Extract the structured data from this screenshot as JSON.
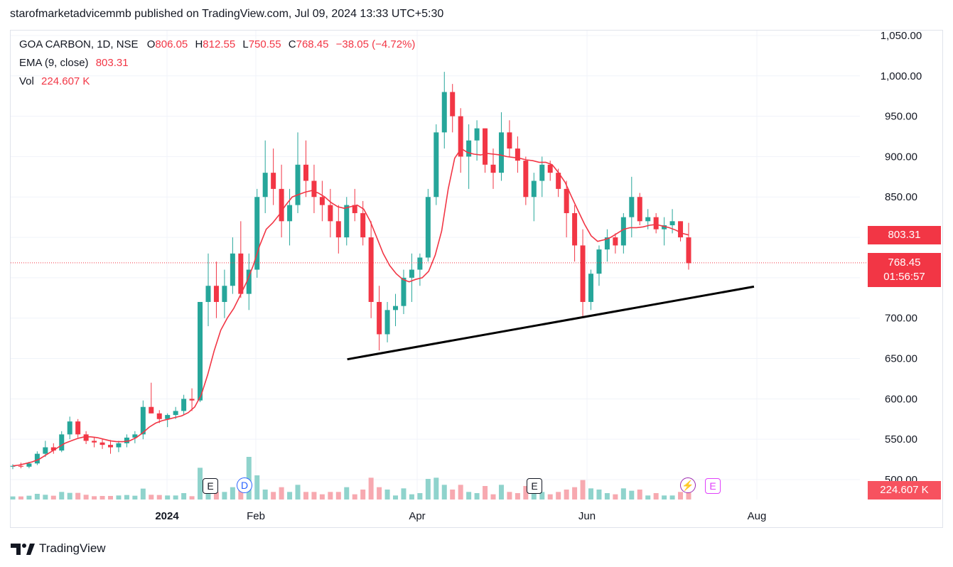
{
  "header": {
    "published": "starofmarketadvicemmb published on TradingView.com, Jul 09, 2024 13:33 UTC+5:30"
  },
  "legend": {
    "symbol": "GOA CARBON, 1D, NSE",
    "o_label": "O",
    "o": "806.05",
    "h_label": "H",
    "h": "812.55",
    "l_label": "L",
    "l": "750.55",
    "c_label": "C",
    "c": "768.45",
    "change": "−38.05 (−4.72%)",
    "ema_label": "EMA (9, close)",
    "ema_value": "803.31",
    "vol_label": "Vol",
    "vol_value": "224.607 K"
  },
  "price_tags": {
    "ema": "803.31",
    "last": "768.45",
    "countdown": "01:56:57",
    "volume": "224.607 K"
  },
  "badges": {
    "earnings": "E",
    "dividend": "D"
  },
  "brand": {
    "name": "TradingView"
  },
  "colors": {
    "up": "#26a69a",
    "down": "#f23645",
    "ema": "#f23645",
    "vol_up": "#8fd3cc",
    "vol_down": "#f7a9b0",
    "trendline": "#000000"
  },
  "chart_data": {
    "type": "candlestick",
    "symbol": "GOA CARBON",
    "interval": "1D",
    "exchange": "NSE",
    "y_ticks": [
      "1,050.00",
      "1,000.00",
      "950.00",
      "900.00",
      "850.00",
      "800.00",
      "750.00",
      "700.00",
      "650.00",
      "600.00",
      "550.00",
      "500.00"
    ],
    "y_tick_values": [
      1050,
      1000,
      950,
      900,
      850,
      800,
      750,
      700,
      650,
      600,
      550,
      500
    ],
    "ylim": [
      478,
      1057
    ],
    "x_ticks": [
      {
        "label": "2024",
        "date": "2024-01-01"
      },
      {
        "label": "Feb",
        "date": "2024-02-01"
      },
      {
        "label": "Apr",
        "date": "2024-04-01"
      },
      {
        "label": "Jun",
        "date": "2024-06-03"
      },
      {
        "label": "Aug",
        "date": "2024-08-01"
      }
    ],
    "last_close": 768.45,
    "ema_last": 803.31,
    "trendline": {
      "from": {
        "date": "2024-03-06",
        "price": 649
      },
      "to": {
        "date": "2024-07-31",
        "price": 739
      }
    },
    "series": [
      {
        "name": "EMA (9, close)",
        "values": [
          517,
          518,
          520,
          522,
          525,
          530,
          535,
          540,
          545,
          548,
          551,
          553,
          553,
          552,
          550,
          548,
          547,
          547,
          548,
          552,
          558,
          565,
          570,
          573,
          575,
          577,
          579,
          583,
          590,
          605,
          630,
          660,
          685,
          700,
          712,
          728,
          745,
          765,
          790,
          810,
          818,
          828,
          840,
          850,
          853,
          856,
          858,
          855,
          850,
          843,
          838,
          836,
          838,
          840,
          835,
          820,
          800,
          780,
          765,
          755,
          748,
          745,
          748,
          750,
          758,
          778,
          808,
          860,
          898,
          910,
          905,
          903,
          902,
          904,
          903,
          902,
          900,
          899,
          898,
          896,
          895,
          893,
          893,
          890,
          880,
          868,
          850,
          833,
          816,
          802,
          795,
          797,
          800,
          805,
          810,
          812,
          812,
          813,
          815,
          816,
          814,
          812,
          809,
          805,
          803
        ]
      }
    ],
    "candles_ohlc_approx": [
      [
        516,
        519,
        513,
        517
      ],
      [
        517,
        521,
        514,
        516
      ],
      [
        516,
        522,
        514,
        520
      ],
      [
        520,
        535,
        518,
        532
      ],
      [
        532,
        548,
        528,
        540
      ],
      [
        540,
        545,
        532,
        536
      ],
      [
        536,
        560,
        534,
        556
      ],
      [
        556,
        578,
        550,
        572
      ],
      [
        572,
        575,
        552,
        556
      ],
      [
        556,
        560,
        544,
        548
      ],
      [
        548,
        553,
        540,
        546
      ],
      [
        546,
        550,
        538,
        543
      ],
      [
        543,
        549,
        532,
        540
      ],
      [
        540,
        548,
        534,
        545
      ],
      [
        545,
        556,
        540,
        552
      ],
      [
        552,
        560,
        545,
        556
      ],
      [
        556,
        598,
        550,
        590
      ],
      [
        590,
        620,
        582,
        582
      ],
      [
        582,
        586,
        570,
        575
      ],
      [
        575,
        582,
        565,
        580
      ],
      [
        580,
        590,
        575,
        585
      ],
      [
        585,
        605,
        580,
        600
      ],
      [
        600,
        613,
        585,
        598
      ],
      [
        598,
        660,
        596,
        720
      ],
      [
        720,
        780,
        690,
        740
      ],
      [
        740,
        770,
        700,
        720
      ],
      [
        720,
        760,
        700,
        740
      ],
      [
        740,
        800,
        730,
        780
      ],
      [
        780,
        820,
        725,
        730
      ],
      [
        730,
        780,
        710,
        760
      ],
      [
        760,
        860,
        750,
        850
      ],
      [
        850,
        920,
        830,
        880
      ],
      [
        880,
        910,
        840,
        860
      ],
      [
        860,
        890,
        800,
        820
      ],
      [
        820,
        860,
        790,
        840
      ],
      [
        840,
        930,
        830,
        890
      ],
      [
        890,
        920,
        850,
        870
      ],
      [
        870,
        890,
        830,
        850
      ],
      [
        850,
        870,
        820,
        840
      ],
      [
        840,
        860,
        800,
        820
      ],
      [
        820,
        840,
        780,
        800
      ],
      [
        800,
        850,
        790,
        840
      ],
      [
        840,
        860,
        820,
        830
      ],
      [
        830,
        845,
        790,
        800
      ],
      [
        800,
        820,
        700,
        720
      ],
      [
        720,
        740,
        660,
        680
      ],
      [
        680,
        720,
        670,
        710
      ],
      [
        710,
        730,
        690,
        715
      ],
      [
        715,
        760,
        705,
        750
      ],
      [
        750,
        780,
        720,
        760
      ],
      [
        760,
        780,
        740,
        775
      ],
      [
        775,
        860,
        770,
        850
      ],
      [
        850,
        940,
        840,
        930
      ],
      [
        930,
        1005,
        910,
        980
      ],
      [
        980,
        990,
        930,
        950
      ],
      [
        950,
        960,
        880,
        900
      ],
      [
        900,
        940,
        860,
        920
      ],
      [
        920,
        945,
        895,
        935
      ],
      [
        935,
        935,
        880,
        890
      ],
      [
        890,
        910,
        860,
        880
      ],
      [
        880,
        955,
        870,
        930
      ],
      [
        930,
        945,
        900,
        910
      ],
      [
        910,
        925,
        880,
        895
      ],
      [
        895,
        900,
        840,
        850
      ],
      [
        850,
        880,
        820,
        870
      ],
      [
        870,
        900,
        850,
        890
      ],
      [
        890,
        895,
        870,
        880
      ],
      [
        880,
        885,
        850,
        860
      ],
      [
        860,
        870,
        800,
        830
      ],
      [
        830,
        840,
        770,
        790
      ],
      [
        790,
        810,
        700,
        720
      ],
      [
        720,
        760,
        710,
        755
      ],
      [
        755,
        790,
        740,
        785
      ],
      [
        785,
        810,
        770,
        800
      ],
      [
        800,
        805,
        780,
        790
      ],
      [
        790,
        830,
        780,
        825
      ],
      [
        825,
        875,
        800,
        850
      ],
      [
        850,
        855,
        815,
        820
      ],
      [
        820,
        835,
        810,
        825
      ],
      [
        825,
        830,
        805,
        810
      ],
      [
        810,
        825,
        790,
        815
      ],
      [
        815,
        835,
        805,
        820
      ],
      [
        820,
        820,
        795,
        800
      ],
      [
        800,
        818,
        760,
        768
      ]
    ],
    "volume_markers": "unlabeled bars beneath price; current volume 224.607 K"
  }
}
